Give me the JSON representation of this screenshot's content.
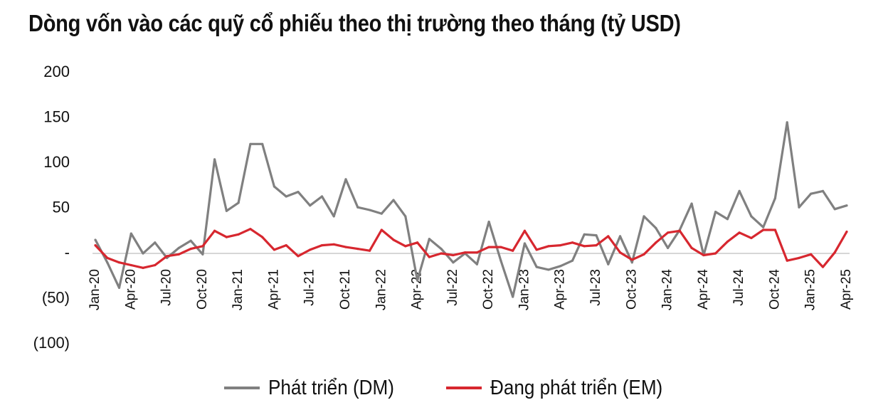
{
  "chart_data": {
    "type": "line",
    "title": "Dòng vốn vào các quỹ cổ phiếu theo thị trường theo tháng (tỷ USD)",
    "xlabel": "",
    "ylabel": "",
    "ylim": [
      -100,
      200
    ],
    "yticks": [
      200,
      150,
      100,
      50,
      0,
      -50,
      -100
    ],
    "ytick_labels": [
      "200",
      "150",
      "100",
      "50",
      "-",
      "(50)",
      "(100)"
    ],
    "x": [
      "Jan-20",
      "Feb-20",
      "Mar-20",
      "Apr-20",
      "May-20",
      "Jun-20",
      "Jul-20",
      "Aug-20",
      "Sep-20",
      "Oct-20",
      "Nov-20",
      "Dec-20",
      "Jan-21",
      "Feb-21",
      "Mar-21",
      "Apr-21",
      "May-21",
      "Jun-21",
      "Jul-21",
      "Aug-21",
      "Sep-21",
      "Oct-21",
      "Nov-21",
      "Dec-21",
      "Jan-22",
      "Feb-22",
      "Mar-22",
      "Apr-22",
      "May-22",
      "Jun-22",
      "Jul-22",
      "Aug-22",
      "Sep-22",
      "Oct-22",
      "Nov-22",
      "Dec-22",
      "Jan-23",
      "Feb-23",
      "Mar-23",
      "Apr-23",
      "May-23",
      "Jun-23",
      "Jul-23",
      "Aug-23",
      "Sep-23",
      "Oct-23",
      "Nov-23",
      "Dec-23",
      "Jan-24",
      "Feb-24",
      "Mar-24",
      "Apr-24",
      "May-24",
      "Jun-24",
      "Jul-24",
      "Aug-24",
      "Sep-24",
      "Oct-24",
      "Nov-24",
      "Dec-24",
      "Jan-25",
      "Feb-25",
      "Mar-25",
      "Apr-25"
    ],
    "tick_labels": [
      "Jan-20",
      "Apr-20",
      "Jul-20",
      "Oct-20",
      "Jan-21",
      "Apr-21",
      "Jul-21",
      "Oct-21",
      "Jan-22",
      "Apr-22",
      "Jul-22",
      "Oct-22",
      "Jan-23",
      "Apr-23",
      "Jul-23",
      "Oct-23",
      "Jan-24",
      "Apr-24",
      "Jul-24",
      "Oct-24",
      "Jan-25",
      "Apr-25"
    ],
    "grid": false,
    "legend_position": "bottom",
    "series": [
      {
        "name": "Phát triển (DM)",
        "color": "#808080",
        "values": [
          15,
          -10,
          -38,
          22,
          0,
          12,
          -5,
          6,
          14,
          -1,
          104,
          47,
          56,
          121,
          121,
          74,
          63,
          68,
          53,
          63,
          41,
          82,
          51,
          48,
          44,
          59,
          41,
          -30,
          16,
          5,
          -10,
          0,
          -12,
          35,
          -8,
          -48,
          11,
          -15,
          -18,
          -14,
          -8,
          21,
          20,
          -12,
          19,
          -10,
          41,
          28,
          6,
          26,
          55,
          -2,
          46,
          38,
          69,
          41,
          29,
          61,
          145,
          51,
          66,
          69,
          49,
          53
        ]
      },
      {
        "name": "Đang phát triển (EM)",
        "color": "#d7272f",
        "values": [
          9,
          -5,
          -10,
          -13,
          -16,
          -13,
          -3,
          -1,
          5,
          8,
          25,
          18,
          21,
          27,
          18,
          4,
          9,
          -3,
          4,
          9,
          10,
          7,
          5,
          3,
          26,
          15,
          8,
          12,
          -4,
          0,
          -2,
          1,
          1,
          7,
          7,
          3,
          25,
          4,
          8,
          9,
          12,
          8,
          9,
          19,
          1,
          -7,
          -1,
          12,
          23,
          25,
          6,
          -2,
          0,
          13,
          23,
          17,
          26,
          26,
          -8,
          -5,
          -1,
          -15,
          1,
          24
        ]
      }
    ]
  }
}
